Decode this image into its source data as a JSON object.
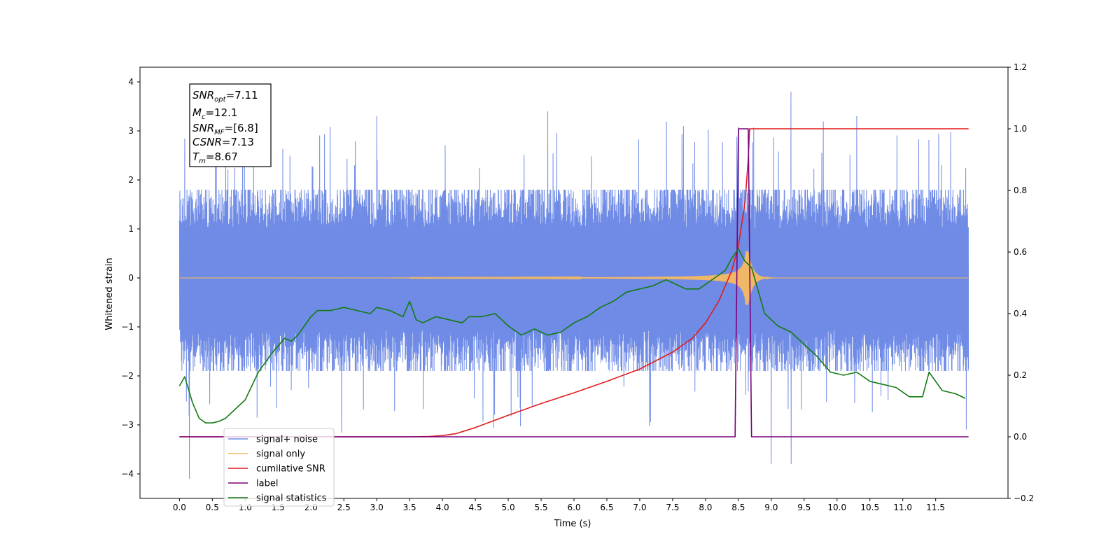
{
  "chart_data": {
    "type": "line",
    "xlabel": "Time (s)",
    "ylabel": "Whitened strain",
    "xlim": [
      -0.6,
      12.6
    ],
    "ylim_left": [
      -4.5,
      4.3
    ],
    "ylim_right": [
      -0.2,
      1.2
    ],
    "x_ticks": [
      "0.0",
      "0.5",
      "1.0",
      "1.5",
      "2.0",
      "2.5",
      "3.0",
      "3.5",
      "4.0",
      "4.5",
      "5.0",
      "5.5",
      "6.0",
      "6.5",
      "7.0",
      "7.5",
      "8.0",
      "8.5",
      "9.0",
      "9.5",
      "10.0",
      "10.5",
      "11.0",
      "11.5"
    ],
    "y_ticks_left": [
      "4",
      "3",
      "2",
      "1",
      "0",
      "−1",
      "−2",
      "−3",
      "−4"
    ],
    "y_ticks_right": [
      "1.2",
      "1.0",
      "0.8",
      "0.6",
      "0.4",
      "0.2",
      "0.0",
      "−0.2"
    ],
    "grid": false,
    "legend_position": "lower-left",
    "annotation": {
      "snr_opt": {
        "sym": "SNR",
        "sub": "opt",
        "value": "=7.11"
      },
      "mc": {
        "sym": "M",
        "sub": "c",
        "value": "=12.1"
      },
      "snr_mf": {
        "sym": "SNR",
        "sub": "MF",
        "value": "=[6.8]"
      },
      "csnr": {
        "sym": "CSNR",
        "value": "=7.13"
      },
      "tm": {
        "sym": "T",
        "sub": "m",
        "value": "=8.67"
      }
    },
    "series": [
      {
        "name": "signal+ noise",
        "axis": "left",
        "color": "#6f8be6",
        "description_values": {
          "t_start": 0.0,
          "t_end": 12.0,
          "envelope_low": -1.9,
          "envelope_high": 1.8,
          "notable_peaks": [
            [
              0.15,
              -4.1
            ],
            [
              3.0,
              3.3
            ],
            [
              5.6,
              3.4
            ],
            [
              9.0,
              -3.8
            ],
            [
              9.3,
              3.8
            ],
            [
              9.3,
              -3.8
            ],
            [
              10.3,
              3.3
            ]
          ]
        }
      },
      {
        "name": "signal only",
        "axis": "left",
        "color": "#f7b960",
        "description_values": {
          "t_start": 0.0,
          "t_end": 12.0,
          "peak_amplitude": 0.55,
          "peak_time": 8.65
        }
      },
      {
        "name": "cumilative SNR",
        "axis": "right",
        "color": "#e01b1b",
        "x": [
          0.0,
          3.5,
          3.8,
          4.0,
          4.2,
          4.5,
          5.0,
          5.5,
          6.0,
          6.5,
          7.0,
          7.5,
          7.8,
          8.0,
          8.2,
          8.4,
          8.5,
          8.6,
          8.65,
          8.67,
          12.0
        ],
        "y": [
          0.0,
          0.0,
          0.001,
          0.004,
          0.01,
          0.03,
          0.07,
          0.108,
          0.143,
          0.18,
          0.22,
          0.275,
          0.32,
          0.37,
          0.44,
          0.54,
          0.62,
          0.76,
          0.9,
          1.0,
          1.0
        ]
      },
      {
        "name": "label",
        "axis": "right",
        "color": "#7b007b",
        "x": [
          0.0,
          8.45,
          8.5,
          8.65,
          8.7,
          12.0
        ],
        "y": [
          0.0,
          0.0,
          1.0,
          1.0,
          0.0,
          0.0
        ]
      },
      {
        "name": "signal statistics",
        "axis": "right",
        "color": "#137a13",
        "x": [
          0.0,
          0.08,
          0.2,
          0.3,
          0.4,
          0.5,
          0.6,
          0.7,
          0.8,
          0.9,
          1.0,
          1.2,
          1.4,
          1.6,
          1.7,
          1.8,
          2.0,
          2.1,
          2.3,
          2.5,
          2.7,
          2.9,
          3.0,
          3.2,
          3.4,
          3.5,
          3.6,
          3.7,
          3.9,
          4.1,
          4.3,
          4.4,
          4.6,
          4.8,
          5.0,
          5.2,
          5.4,
          5.6,
          5.8,
          6.0,
          6.2,
          6.4,
          6.6,
          6.8,
          7.0,
          7.2,
          7.4,
          7.5,
          7.7,
          7.9,
          8.1,
          8.3,
          8.4,
          8.5,
          8.6,
          8.7,
          8.9,
          9.1,
          9.3,
          9.5,
          9.7,
          9.9,
          10.1,
          10.3,
          10.5,
          10.7,
          10.9,
          11.1,
          11.3,
          11.4,
          11.6,
          11.8,
          11.95
        ],
        "y": [
          0.165,
          0.195,
          0.11,
          0.06,
          0.045,
          0.045,
          0.05,
          0.06,
          0.08,
          0.1,
          0.12,
          0.21,
          0.27,
          0.32,
          0.31,
          0.33,
          0.39,
          0.41,
          0.41,
          0.42,
          0.41,
          0.4,
          0.42,
          0.41,
          0.39,
          0.44,
          0.38,
          0.37,
          0.39,
          0.38,
          0.37,
          0.39,
          0.39,
          0.4,
          0.36,
          0.33,
          0.35,
          0.33,
          0.34,
          0.37,
          0.39,
          0.42,
          0.44,
          0.47,
          0.48,
          0.49,
          0.51,
          0.5,
          0.48,
          0.48,
          0.51,
          0.54,
          0.58,
          0.61,
          0.57,
          0.55,
          0.4,
          0.36,
          0.34,
          0.3,
          0.26,
          0.21,
          0.2,
          0.21,
          0.18,
          0.17,
          0.16,
          0.13,
          0.13,
          0.21,
          0.15,
          0.14,
          0.125
        ]
      }
    ]
  }
}
